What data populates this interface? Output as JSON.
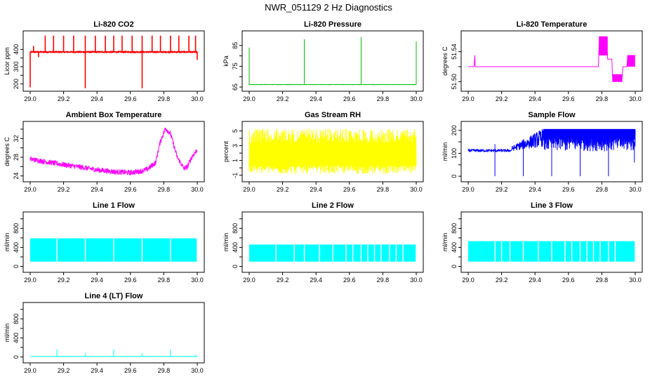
{
  "page_title": "NWR_051129  2 Hz Diagnostics",
  "x_axis": {
    "range": [
      29.0,
      30.0
    ],
    "ticks": [
      29.0,
      29.2,
      29.4,
      29.6,
      29.8,
      30.0
    ],
    "labels": [
      "29.0",
      "29.2",
      "29.4",
      "29.6",
      "29.8",
      "30.0"
    ]
  },
  "chart_data": [
    {
      "type": "line",
      "id": "co2",
      "title": "Li-820 CO2",
      "ylabel": "Licor ppm",
      "color": "#ff0000",
      "ylim": [
        170,
        495
      ],
      "yticks": [
        200,
        250,
        300,
        350,
        400
      ],
      "yticklabels": [
        "200",
        "",
        "300",
        "",
        "400"
      ],
      "series": [
        {
          "name": "CO2",
          "kind": "spiky",
          "base": 385,
          "noise": 4,
          "spikes": [
            [
              29.0,
              180
            ],
            [
              29.02,
              420
            ],
            [
              29.05,
              355
            ],
            [
              29.09,
              480
            ],
            [
              29.14,
              480
            ],
            [
              29.2,
              480
            ],
            [
              29.26,
              480
            ],
            [
              29.33,
              175
            ],
            [
              29.33,
              480
            ],
            [
              29.39,
              480
            ],
            [
              29.45,
              480
            ],
            [
              29.5,
              480
            ],
            [
              29.55,
              480
            ],
            [
              29.61,
              480
            ],
            [
              29.67,
              175
            ],
            [
              29.67,
              480
            ],
            [
              29.73,
              480
            ],
            [
              29.78,
              480
            ],
            [
              29.84,
              480
            ],
            [
              29.89,
              480
            ],
            [
              29.95,
              480
            ],
            [
              29.99,
              480
            ],
            [
              30.0,
              340
            ]
          ]
        }
      ]
    },
    {
      "type": "line",
      "id": "pressure",
      "title": "Li-820 Pressure",
      "ylabel": "kPa",
      "color": "#00c000",
      "ylim": [
        64,
        91
      ],
      "yticks": [
        65,
        70,
        75,
        80,
        85
      ],
      "yticklabels": [
        "65",
        "",
        "75",
        "",
        "85"
      ],
      "series": [
        {
          "name": "Pressure",
          "kind": "spiky",
          "base": 66.2,
          "noise": 0.1,
          "spikes": [
            [
              29.0,
              84
            ],
            [
              29.33,
              88
            ],
            [
              29.67,
              89
            ],
            [
              30.0,
              87
            ]
          ]
        }
      ]
    },
    {
      "type": "line",
      "id": "temp",
      "title": "Li-820 Temperature",
      "ylabel": "degrees C",
      "color": "#ff00ff",
      "ylim": [
        51.49,
        51.565
      ],
      "yticks": [
        51.5,
        51.52,
        51.54
      ],
      "yticklabels": [
        "51.50",
        "",
        "51.54"
      ],
      "series": [
        {
          "name": "Temperature",
          "kind": "step",
          "points": [
            [
              29.0,
              51.52
            ],
            [
              29.035,
              51.52
            ],
            [
              29.04,
              51.535
            ],
            [
              29.042,
              51.52
            ],
            [
              29.78,
              51.52
            ],
            [
              29.785,
              51.56
            ],
            [
              29.83,
              51.56
            ],
            [
              29.835,
              51.53
            ],
            [
              29.86,
              51.53
            ],
            [
              29.865,
              51.5
            ],
            [
              29.92,
              51.5
            ],
            [
              29.925,
              51.52
            ],
            [
              29.95,
              51.52
            ],
            [
              29.955,
              51.535
            ],
            [
              30.0,
              51.535
            ]
          ]
        }
      ]
    },
    {
      "type": "line",
      "id": "ambient",
      "title": "Ambient Box Temperature",
      "ylabel": "degrees C",
      "color": "#ff00ff",
      "ylim": [
        23.2,
        35.2
      ],
      "yticks": [
        24,
        26,
        28,
        30,
        32,
        34
      ],
      "yticklabels": [
        "24",
        "",
        "28",
        "",
        "32",
        ""
      ],
      "series": [
        {
          "name": "Ambient",
          "kind": "smooth_noisy",
          "noise": 0.55,
          "points": [
            [
              29.0,
              27.6
            ],
            [
              29.1,
              27.0
            ],
            [
              29.2,
              26.4
            ],
            [
              29.3,
              25.9
            ],
            [
              29.4,
              25.3
            ],
            [
              29.5,
              24.9
            ],
            [
              29.6,
              24.7
            ],
            [
              29.66,
              25.0
            ],
            [
              29.7,
              25.4
            ],
            [
              29.75,
              26.8
            ],
            [
              29.78,
              31.5
            ],
            [
              29.81,
              34.2
            ],
            [
              29.84,
              33.0
            ],
            [
              29.88,
              28.0
            ],
            [
              29.92,
              25.6
            ],
            [
              29.94,
              25.9
            ],
            [
              29.97,
              28.2
            ],
            [
              30.0,
              29.6
            ]
          ]
        }
      ]
    },
    {
      "type": "line",
      "id": "rh",
      "title": "Gas Stream RH",
      "ylabel": "percent",
      "color": "#ffff00",
      "ylim": [
        -1.6,
        6.0
      ],
      "yticks": [
        -1,
        0,
        1,
        2,
        3,
        4,
        5
      ],
      "yticklabels": [
        "-1",
        "",
        "1",
        "",
        "3",
        "",
        "5"
      ],
      "series": [
        {
          "name": "RH",
          "kind": "dense",
          "low": -0.8,
          "high": 5.3,
          "min": -1.0,
          "max": 5.6
        }
      ]
    },
    {
      "type": "line",
      "id": "sample",
      "title": "Sample Flow",
      "ylabel": "ml/min",
      "color": "#0000ff",
      "ylim": [
        -15,
        230
      ],
      "yticks": [
        0,
        50,
        100,
        150,
        200
      ],
      "yticklabels": [
        "0",
        "",
        "100",
        "",
        "200"
      ],
      "series": [
        {
          "name": "Sample",
          "kind": "sample_flow"
        }
      ]
    },
    {
      "type": "line",
      "id": "line1",
      "title": "Line 1 Flow",
      "ylabel": "ml/min",
      "color": "#00ffff",
      "ylim": [
        -80,
        1100
      ],
      "yticks": [
        0,
        200,
        400,
        600,
        800,
        1000
      ],
      "yticklabels": [
        "0",
        "",
        "400",
        "",
        "800",
        ""
      ],
      "series": [
        {
          "name": "Line 1",
          "kind": "band",
          "low": 100,
          "high": 590,
          "gaps": [
            29.16,
            29.33,
            29.5,
            29.67,
            29.84
          ]
        }
      ]
    },
    {
      "type": "line",
      "id": "line2",
      "title": "Line 2 Flow",
      "ylabel": "ml/min",
      "color": "#00ffff",
      "ylim": [
        -80,
        1100
      ],
      "yticks": [
        0,
        200,
        400,
        600,
        800,
        1000
      ],
      "yticklabels": [
        "0",
        "",
        "400",
        "",
        "800",
        ""
      ],
      "series": [
        {
          "name": "Line 2",
          "kind": "band",
          "low": 100,
          "high": 460,
          "gaps": [
            29.16,
            29.27,
            29.33,
            29.42,
            29.5,
            29.58,
            29.62,
            29.67,
            29.71,
            29.75,
            29.79,
            29.84,
            29.88,
            29.92
          ]
        }
      ]
    },
    {
      "type": "line",
      "id": "line3",
      "title": "Line 3 Flow",
      "ylabel": "ml/min",
      "color": "#00ffff",
      "ylim": [
        -80,
        1100
      ],
      "yticks": [
        0,
        200,
        400,
        600,
        800,
        1000
      ],
      "yticklabels": [
        "0",
        "",
        "400",
        "",
        "800",
        ""
      ],
      "series": [
        {
          "name": "Line 3",
          "kind": "band",
          "low": 100,
          "high": 530,
          "gaps": [
            29.16,
            29.2,
            29.25,
            29.33,
            29.42,
            29.5,
            29.58,
            29.62,
            29.67,
            29.71,
            29.75,
            29.79,
            29.84,
            29.88
          ]
        }
      ]
    },
    {
      "type": "line",
      "id": "line4",
      "title": "Line 4 (LT) Flow",
      "ylabel": "ml/min",
      "color": "#00ffff",
      "ylim": [
        -80,
        1100
      ],
      "yticks": [
        0,
        200,
        400,
        600,
        800,
        1000
      ],
      "yticklabels": [
        "0",
        "",
        "400",
        "",
        "800",
        ""
      ],
      "series": [
        {
          "name": "Line 4",
          "kind": "spiky",
          "base": 10,
          "noise": 3,
          "spikes": [
            [
              29.16,
              160
            ],
            [
              29.33,
              80
            ],
            [
              29.5,
              160
            ],
            [
              29.67,
              80
            ],
            [
              29.84,
              150
            ],
            [
              29.99,
              50
            ]
          ]
        }
      ]
    }
  ]
}
